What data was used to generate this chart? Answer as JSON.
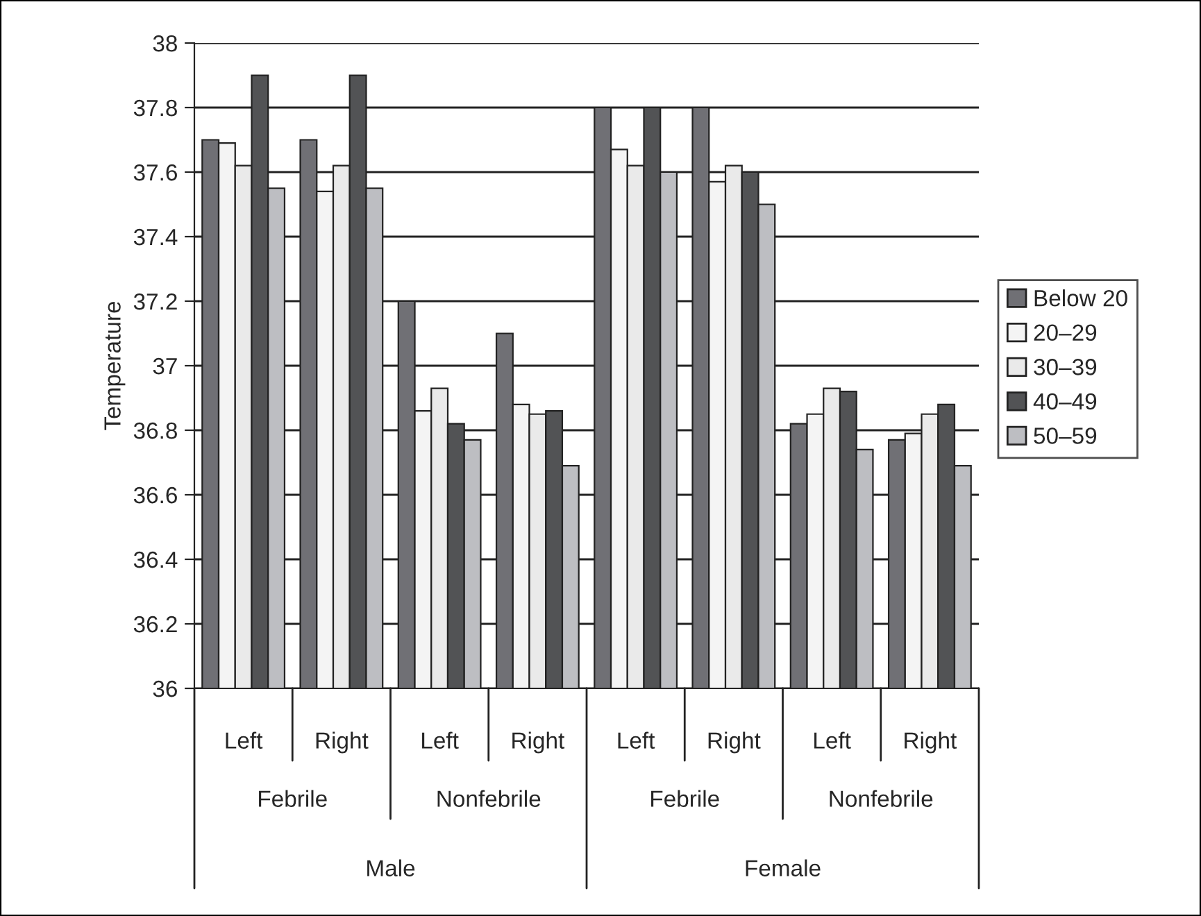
{
  "chart_data": {
    "type": "bar",
    "ylabel": "Temperature",
    "categories": [
      "Left",
      "Right",
      "Left",
      "Right",
      "Left",
      "Right",
      "Left",
      "Right"
    ],
    "series": [
      {
        "name": "Below 20",
        "color": "#707075",
        "values": [
          37.7,
          37.7,
          37.2,
          37.1,
          37.8,
          37.8,
          36.82,
          36.77
        ]
      },
      {
        "name": "20–29",
        "color": "#f4f4f4",
        "values": [
          37.69,
          37.54,
          36.86,
          36.88,
          37.67,
          37.57,
          36.85,
          36.79
        ]
      },
      {
        "name": "30–39",
        "color": "#eaeaea",
        "values": [
          37.62,
          37.62,
          36.93,
          36.85,
          37.62,
          37.62,
          36.93,
          36.85
        ]
      },
      {
        "name": "40–49",
        "color": "#525355",
        "values": [
          37.9,
          37.9,
          36.82,
          36.86,
          37.8,
          37.6,
          36.92,
          36.88
        ]
      },
      {
        "name": "50–59",
        "color": "#bdbec2",
        "values": [
          37.55,
          37.55,
          36.77,
          36.69,
          37.6,
          37.5,
          36.74,
          36.69
        ]
      }
    ],
    "annotations": [
      "Febrile",
      "Nonfebrile",
      "Febrile",
      "Nonfebrile",
      "Male",
      "Female"
    ],
    "ylim": [
      36,
      38
    ],
    "yticks": [
      36,
      36.2,
      36.4,
      36.6,
      36.8,
      37,
      37.2,
      37.4,
      37.6,
      37.8,
      38
    ],
    "grid": "y",
    "legend": "right"
  }
}
